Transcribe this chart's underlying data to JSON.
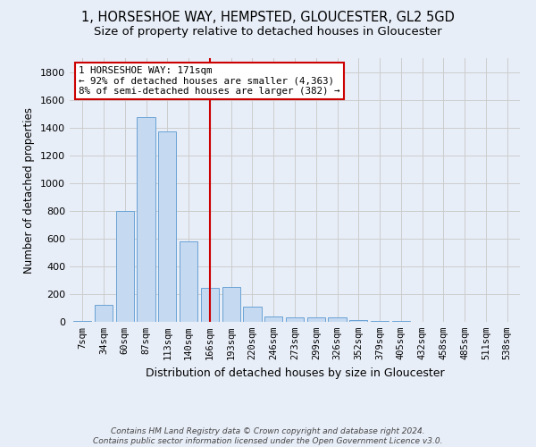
{
  "title": "1, HORSESHOE WAY, HEMPSTED, GLOUCESTER, GL2 5GD",
  "subtitle": "Size of property relative to detached houses in Gloucester",
  "xlabel": "Distribution of detached houses by size in Gloucester",
  "ylabel": "Number of detached properties",
  "categories": [
    "7sqm",
    "34sqm",
    "60sqm",
    "87sqm",
    "113sqm",
    "140sqm",
    "166sqm",
    "193sqm",
    "220sqm",
    "246sqm",
    "273sqm",
    "299sqm",
    "326sqm",
    "352sqm",
    "379sqm",
    "405sqm",
    "432sqm",
    "458sqm",
    "485sqm",
    "511sqm",
    "538sqm"
  ],
  "values": [
    5,
    125,
    800,
    1475,
    1375,
    580,
    245,
    250,
    110,
    40,
    35,
    30,
    30,
    15,
    5,
    5,
    3,
    0,
    2,
    0,
    0
  ],
  "bar_color": "#c5d9f1",
  "bar_edge_color": "#6aa3d5",
  "red_line_index": 6,
  "annotation_line1": "1 HORSESHOE WAY: 171sqm",
  "annotation_line2": "← 92% of detached houses are smaller (4,363)",
  "annotation_line3": "8% of semi-detached houses are larger (382) →",
  "annotation_box_color": "#ffffff",
  "annotation_border_color": "#cc0000",
  "ylim": [
    0,
    1900
  ],
  "yticks": [
    0,
    200,
    400,
    600,
    800,
    1000,
    1200,
    1400,
    1600,
    1800
  ],
  "footer_line1": "Contains HM Land Registry data © Crown copyright and database right 2024.",
  "footer_line2": "Contains public sector information licensed under the Open Government Licence v3.0.",
  "bg_color": "#e8eef8",
  "title_fontsize": 10.5,
  "subtitle_fontsize": 9.5
}
